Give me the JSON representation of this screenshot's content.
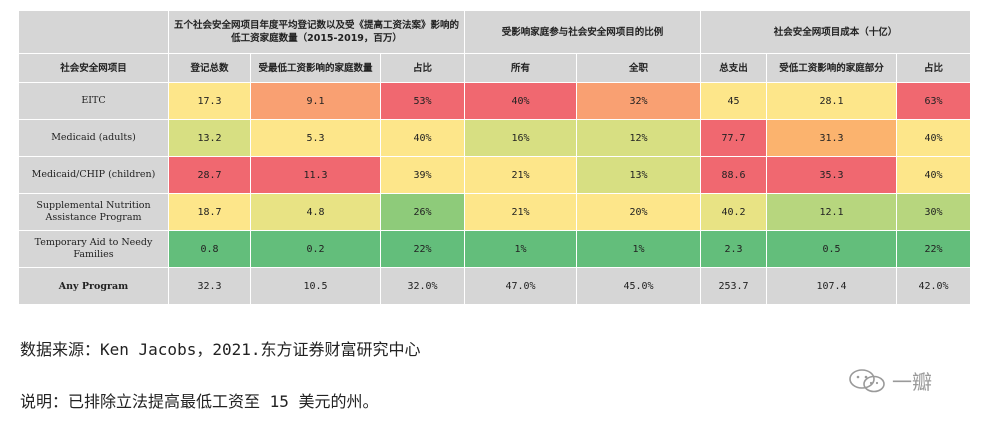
{
  "table": {
    "group_headers": [
      "五个社会安全网项目年度平均登记数以及受《提高工资法案》影响的低工资家庭数量（2015-2019，百万）",
      "受影响家庭参与社会安全网项目的比例",
      "社会安全网项目成本（十亿）"
    ],
    "columns": [
      "社会安全网项目",
      "登记总数",
      "受最低工资影响的家庭数量",
      "占比",
      "所有",
      "全职",
      "总支出",
      "受低工资影响的家庭部分",
      "占比"
    ],
    "rows": [
      {
        "program": "EITC",
        "cells": [
          {
            "v": "17.3",
            "c": "#fde68a"
          },
          {
            "v": "9.1",
            "c": "#f9a072"
          },
          {
            "v": "53%",
            "c": "#f06870"
          },
          {
            "v": "40%",
            "c": "#f06870"
          },
          {
            "v": "32%",
            "c": "#f9a072"
          },
          {
            "v": "45",
            "c": "#fde68a"
          },
          {
            "v": "28.1",
            "c": "#fde68a"
          },
          {
            "v": "63%",
            "c": "#f06870"
          }
        ]
      },
      {
        "program": "Medicaid (adults)",
        "cells": [
          {
            "v": "13.2",
            "c": "#d7df82"
          },
          {
            "v": "5.3",
            "c": "#fde68a"
          },
          {
            "v": "40%",
            "c": "#fde68a"
          },
          {
            "v": "16%",
            "c": "#d7df82"
          },
          {
            "v": "12%",
            "c": "#d7df82"
          },
          {
            "v": "77.7",
            "c": "#f06870"
          },
          {
            "v": "31.3",
            "c": "#fbb36e"
          },
          {
            "v": "40%",
            "c": "#fde68a"
          }
        ]
      },
      {
        "program": "Medicaid/CHIP (children)",
        "cells": [
          {
            "v": "28.7",
            "c": "#f06870"
          },
          {
            "v": "11.3",
            "c": "#f06870"
          },
          {
            "v": "39%",
            "c": "#fde68a"
          },
          {
            "v": "21%",
            "c": "#fde68a"
          },
          {
            "v": "13%",
            "c": "#d7df82"
          },
          {
            "v": "88.6",
            "c": "#f06870"
          },
          {
            "v": "35.3",
            "c": "#f06870"
          },
          {
            "v": "40%",
            "c": "#fde68a"
          }
        ]
      },
      {
        "program": "Supplemental Nutrition Assistance Program",
        "cells": [
          {
            "v": "18.7",
            "c": "#fde68a"
          },
          {
            "v": "4.8",
            "c": "#e8e384"
          },
          {
            "v": "26%",
            "c": "#8ecb7a"
          },
          {
            "v": "21%",
            "c": "#fde68a"
          },
          {
            "v": "20%",
            "c": "#fde68a"
          },
          {
            "v": "40.2",
            "c": "#e8e384"
          },
          {
            "v": "12.1",
            "c": "#b7d67e"
          },
          {
            "v": "30%",
            "c": "#b7d67e"
          }
        ]
      },
      {
        "program": "Temporary Aid to Needy Families",
        "cells": [
          {
            "v": "0.8",
            "c": "#63be7b"
          },
          {
            "v": "0.2",
            "c": "#63be7b"
          },
          {
            "v": "22%",
            "c": "#63be7b"
          },
          {
            "v": "1%",
            "c": "#63be7b"
          },
          {
            "v": "1%",
            "c": "#63be7b"
          },
          {
            "v": "2.3",
            "c": "#63be7b"
          },
          {
            "v": "0.5",
            "c": "#63be7b"
          },
          {
            "v": "22%",
            "c": "#63be7b"
          }
        ]
      }
    ],
    "total": {
      "program": "Any Program",
      "values": [
        "32.3",
        "10.5",
        "32.0%",
        "47.0%",
        "45.0%",
        "253.7",
        "107.4",
        "42.0%"
      ]
    }
  },
  "notes": {
    "source": "数据来源：Ken Jacobs，2021.东方证券财富研究中心",
    "explanation": "说明：已排除立法提高最低工资至 15 美元的州。"
  },
  "watermark": {
    "text": "一瓣"
  }
}
